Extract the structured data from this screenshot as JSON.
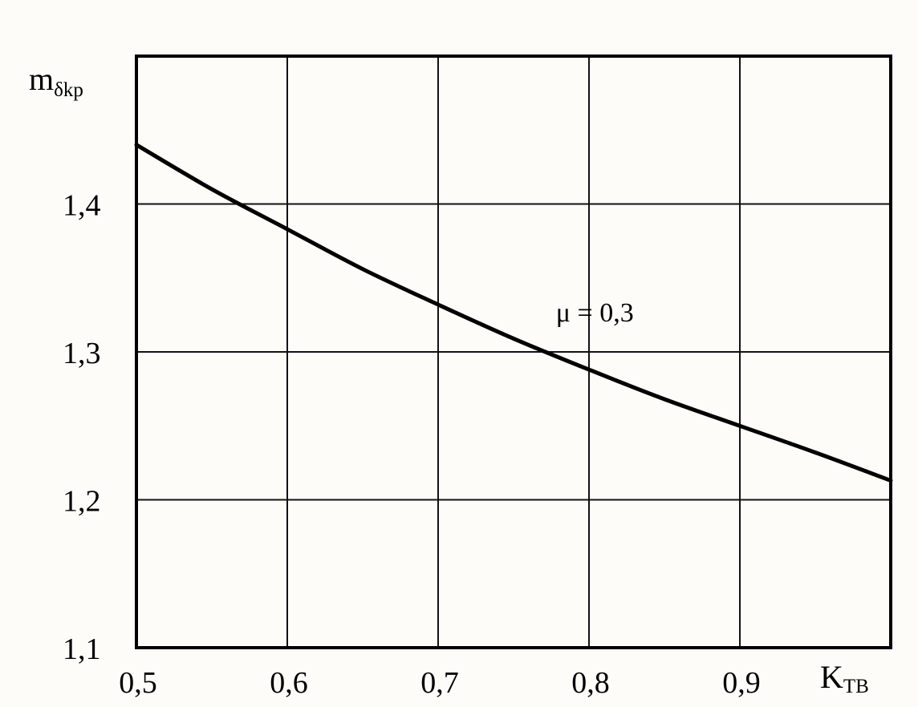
{
  "chart_data": {
    "type": "line",
    "title": "",
    "xlabel": {
      "main": "K",
      "sub": "TB"
    },
    "ylabel": {
      "main": "m",
      "sub": "δkp"
    },
    "xlim": [
      0.5,
      1.0
    ],
    "ylim": [
      1.1,
      1.5
    ],
    "grid": true,
    "x_ticks": [
      {
        "value": 0.5,
        "label": "0,5"
      },
      {
        "value": 0.6,
        "label": "0,6"
      },
      {
        "value": 0.7,
        "label": "0,7"
      },
      {
        "value": 0.8,
        "label": "0,8"
      },
      {
        "value": 0.9,
        "label": "0,9"
      }
    ],
    "y_ticks": [
      {
        "value": 1.1,
        "label": "1,1"
      },
      {
        "value": 1.2,
        "label": "1,2"
      },
      {
        "value": 1.3,
        "label": "1,3"
      },
      {
        "value": 1.4,
        "label": "1,4"
      }
    ],
    "series": [
      {
        "label": "μ = 0,3",
        "x": [
          0.5,
          0.55,
          0.6,
          0.65,
          0.7,
          0.75,
          0.8,
          0.85,
          0.9,
          0.95,
          1.0
        ],
        "y": [
          1.44,
          1.41,
          1.383,
          1.356,
          1.332,
          1.309,
          1.288,
          1.268,
          1.25,
          1.232,
          1.213
        ]
      }
    ],
    "annotations": [
      {
        "text": "μ = 0,3",
        "x": 0.81,
        "y": 1.327
      }
    ]
  }
}
